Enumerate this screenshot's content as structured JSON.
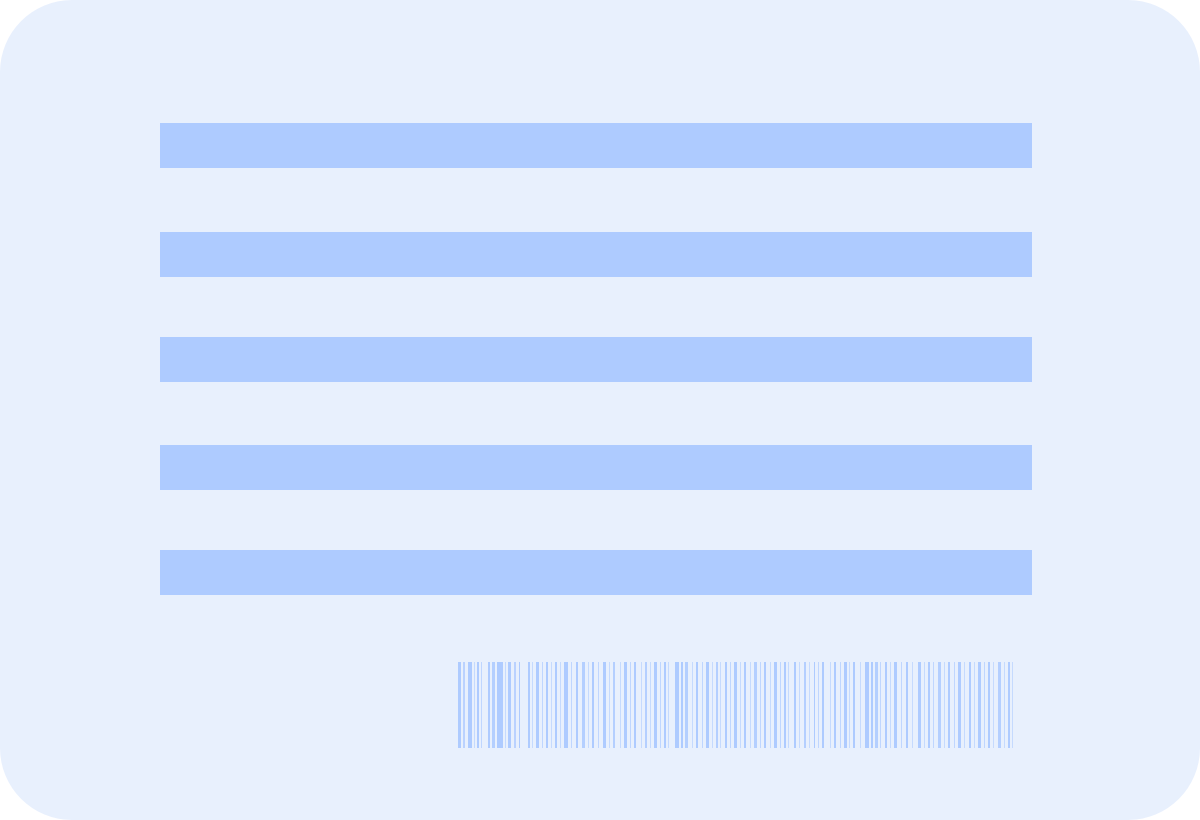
{
  "card": {
    "background": "#e8f0fd",
    "placeholder_line_color": "#aecbff",
    "placeholder_lines": 5
  },
  "barcode": {
    "icon": "barcode-icon",
    "color": "#aecbff"
  }
}
